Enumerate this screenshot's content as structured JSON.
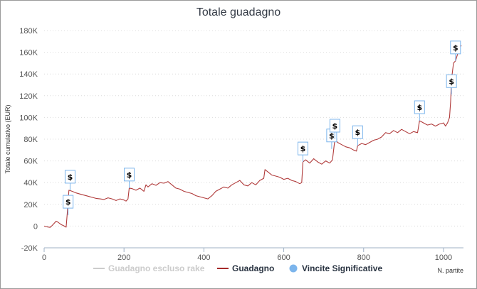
{
  "chart_data": {
    "type": "line",
    "title": "Totale guadagno",
    "xlabel": "N. partite",
    "ylabel": "Totale cumulativo (EUR)",
    "xlim": [
      0,
      1050
    ],
    "ylim": [
      -20000,
      180000
    ],
    "x_ticks": [
      0,
      200,
      400,
      600,
      800,
      1000
    ],
    "y_ticks": [
      -20000,
      0,
      20000,
      40000,
      60000,
      80000,
      100000,
      120000,
      140000,
      160000,
      180000
    ],
    "y_tick_labels": [
      "-20K",
      "0",
      "20K",
      "40K",
      "60K",
      "80K",
      "100K",
      "120K",
      "140K",
      "160K",
      "180K"
    ],
    "grid": "horizontal-dotted",
    "legend": {
      "placement": "bottom-center",
      "items": [
        {
          "label": "Guadagno escluso rake",
          "color": "#cccccc",
          "type": "line"
        },
        {
          "label": "Guadagno",
          "color": "#a52a2a",
          "type": "line"
        },
        {
          "label": "Vincite Significative",
          "color": "#7cb5ec",
          "type": "marker"
        }
      ]
    },
    "series": [
      {
        "name": "Guadagno",
        "color": "#b03a3a",
        "points": [
          [
            0,
            0
          ],
          [
            8,
            -800
          ],
          [
            15,
            -1200
          ],
          [
            20,
            500
          ],
          [
            25,
            2500
          ],
          [
            30,
            4500
          ],
          [
            35,
            3500
          ],
          [
            42,
            1500
          ],
          [
            48,
            500
          ],
          [
            55,
            -1000
          ],
          [
            58,
            12000
          ],
          [
            62,
            33000
          ],
          [
            70,
            32000
          ],
          [
            80,
            30500
          ],
          [
            90,
            29500
          ],
          [
            100,
            28500
          ],
          [
            110,
            27500
          ],
          [
            120,
            26500
          ],
          [
            130,
            25500
          ],
          [
            140,
            25000
          ],
          [
            150,
            24500
          ],
          [
            160,
            26000
          ],
          [
            170,
            25000
          ],
          [
            180,
            23500
          ],
          [
            190,
            25000
          ],
          [
            200,
            24000
          ],
          [
            205,
            23000
          ],
          [
            210,
            25000
          ],
          [
            213,
            35000
          ],
          [
            220,
            34500
          ],
          [
            230,
            33000
          ],
          [
            240,
            35000
          ],
          [
            250,
            32000
          ],
          [
            255,
            38000
          ],
          [
            260,
            36000
          ],
          [
            270,
            39000
          ],
          [
            280,
            37500
          ],
          [
            290,
            40000
          ],
          [
            300,
            39500
          ],
          [
            310,
            41000
          ],
          [
            320,
            38000
          ],
          [
            330,
            35000
          ],
          [
            340,
            34000
          ],
          [
            350,
            32000
          ],
          [
            360,
            31000
          ],
          [
            370,
            30000
          ],
          [
            380,
            28000
          ],
          [
            390,
            27000
          ],
          [
            400,
            26000
          ],
          [
            410,
            25000
          ],
          [
            420,
            28000
          ],
          [
            430,
            32000
          ],
          [
            440,
            34000
          ],
          [
            450,
            36000
          ],
          [
            460,
            35000
          ],
          [
            470,
            38000
          ],
          [
            480,
            40000
          ],
          [
            490,
            42000
          ],
          [
            500,
            38000
          ],
          [
            510,
            37000
          ],
          [
            520,
            40000
          ],
          [
            530,
            38000
          ],
          [
            540,
            42000
          ],
          [
            550,
            44000
          ],
          [
            553,
            52000
          ],
          [
            560,
            50000
          ],
          [
            570,
            47000
          ],
          [
            580,
            46000
          ],
          [
            590,
            45000
          ],
          [
            600,
            43000
          ],
          [
            610,
            44000
          ],
          [
            620,
            42000
          ],
          [
            630,
            41000
          ],
          [
            640,
            39000
          ],
          [
            645,
            40000
          ],
          [
            648,
            59000
          ],
          [
            655,
            61000
          ],
          [
            665,
            58000
          ],
          [
            675,
            62000
          ],
          [
            685,
            59000
          ],
          [
            695,
            57000
          ],
          [
            705,
            60000
          ],
          [
            715,
            58000
          ],
          [
            722,
            61000
          ],
          [
            728,
            80000
          ],
          [
            735,
            77000
          ],
          [
            745,
            75000
          ],
          [
            755,
            73000
          ],
          [
            765,
            72000
          ],
          [
            775,
            70000
          ],
          [
            782,
            69000
          ],
          [
            785,
            74000
          ],
          [
            795,
            76000
          ],
          [
            805,
            75000
          ],
          [
            815,
            77000
          ],
          [
            825,
            79000
          ],
          [
            835,
            80000
          ],
          [
            845,
            82000
          ],
          [
            855,
            86000
          ],
          [
            865,
            85000
          ],
          [
            875,
            88000
          ],
          [
            885,
            86000
          ],
          [
            895,
            89000
          ],
          [
            905,
            87000
          ],
          [
            915,
            85000
          ],
          [
            925,
            87000
          ],
          [
            935,
            86000
          ],
          [
            940,
            97000
          ],
          [
            950,
            95000
          ],
          [
            960,
            93000
          ],
          [
            970,
            94000
          ],
          [
            980,
            92000
          ],
          [
            990,
            94000
          ],
          [
            1000,
            95000
          ],
          [
            1005,
            92000
          ],
          [
            1010,
            95000
          ],
          [
            1015,
            100000
          ],
          [
            1018,
            115000
          ],
          [
            1020,
            135000
          ],
          [
            1025,
            150000
          ],
          [
            1030,
            152000
          ],
          [
            1035,
            158000
          ],
          [
            1040,
            165000
          ],
          [
            1045,
            166000
          ]
        ]
      }
    ],
    "significant_wins": [
      {
        "x": 60,
        "y": 10000,
        "label": "$"
      },
      {
        "x": 65,
        "y": 33000,
        "label": "$"
      },
      {
        "x": 213,
        "y": 35000,
        "label": "$"
      },
      {
        "x": 648,
        "y": 59000,
        "label": "$"
      },
      {
        "x": 720,
        "y": 71000,
        "label": "$"
      },
      {
        "x": 728,
        "y": 80000,
        "label": "$"
      },
      {
        "x": 785,
        "y": 74000,
        "label": "$"
      },
      {
        "x": 940,
        "y": 97000,
        "label": "$"
      },
      {
        "x": 1020,
        "y": 121000,
        "label": "$"
      },
      {
        "x": 1030,
        "y": 152000,
        "label": "$"
      }
    ]
  }
}
